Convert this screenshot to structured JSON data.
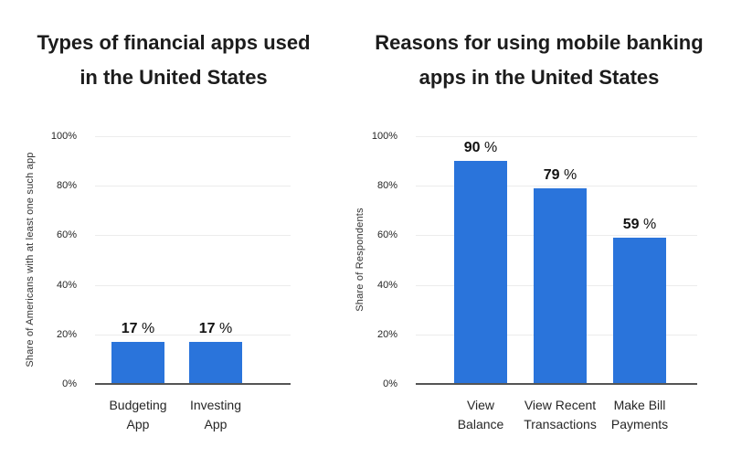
{
  "colors": {
    "background": "#ffffff",
    "bar": "#2a74db",
    "gridline": "#ececec",
    "axis_line": "#555555",
    "title_text": "#1c1c1c",
    "label_text": "#262626",
    "muted_text": "#333333"
  },
  "chart_data": [
    {
      "type": "bar",
      "title": "Types of financial apps used\nin the United States",
      "xlabel": "",
      "ylabel": "Share of Americans with at least one such app",
      "categories": [
        "Budgeting\nApp",
        "Investing\nApp"
      ],
      "values": [
        17,
        17
      ],
      "value_labels": [
        "17 %",
        "17 %"
      ],
      "yticks": [
        0,
        20,
        40,
        60,
        80,
        100
      ],
      "ytick_labels": [
        "0%",
        "20%",
        "40%",
        "60%",
        "80%",
        "100%"
      ],
      "ylim": [
        0,
        100
      ],
      "grid": true,
      "legend": "none",
      "bar_color": "#2a74db"
    },
    {
      "type": "bar",
      "title": "Reasons for using mobile banking\napps in the United States",
      "xlabel": "",
      "ylabel": "Share of Respondents",
      "categories": [
        "View\nBalance",
        "View Recent\nTransactions",
        "Make Bill\nPayments"
      ],
      "values": [
        90,
        79,
        59
      ],
      "value_labels": [
        "90 %",
        "79 %",
        "59 %"
      ],
      "yticks": [
        0,
        20,
        40,
        60,
        80,
        100
      ],
      "ytick_labels": [
        "0%",
        "20%",
        "40%",
        "60%",
        "80%",
        "100%"
      ],
      "ylim": [
        0,
        100
      ],
      "grid": true,
      "legend": "none",
      "bar_color": "#2a74db"
    }
  ]
}
